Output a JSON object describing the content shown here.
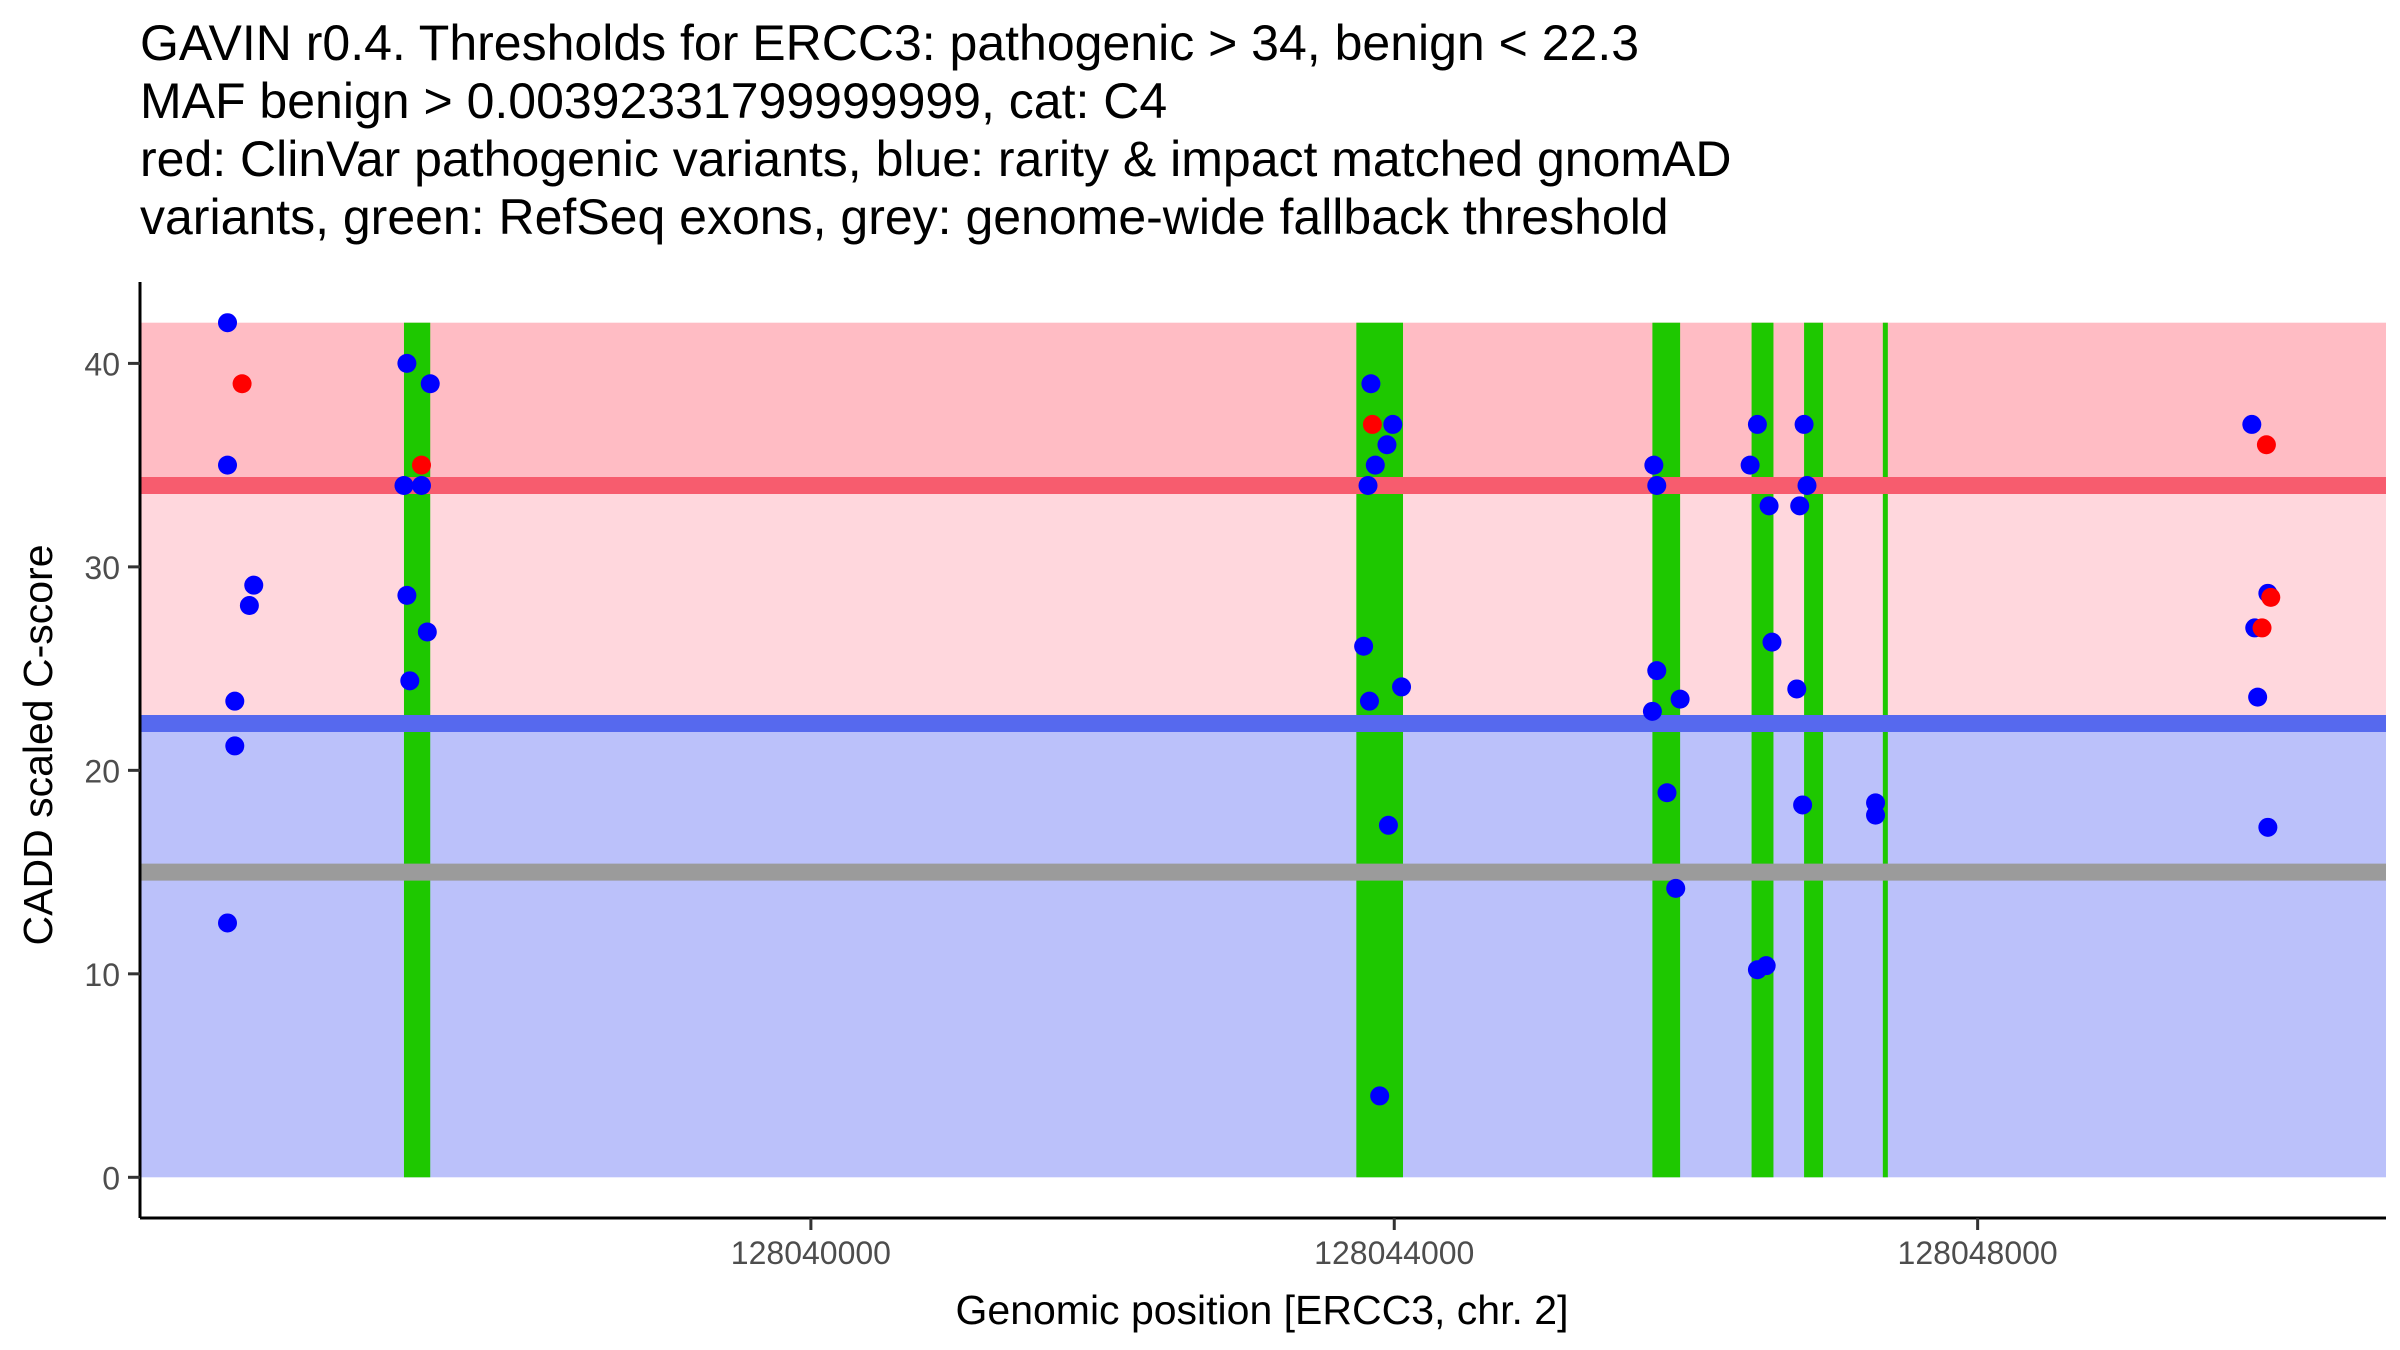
{
  "chart_data": {
    "type": "scatter",
    "title_lines": [
      "GAVIN r0.4. Thresholds for ERCC3: pathogenic > 34, benign < 22.3",
      "MAF benign > 0.00392331799999999, cat: C4",
      "red: ClinVar pathogenic variants, blue: rarity & impact matched gnomAD",
      "variants, green: RefSeq exons, grey: genome-wide fallback threshold"
    ],
    "xlabel": "Genomic position [ERCC3, chr. 2]",
    "ylabel": "CADD scaled C-score",
    "xlim": [
      128035400,
      128050800
    ],
    "ylim": [
      -2,
      44
    ],
    "x_ticks": [
      {
        "value": 128040000,
        "label": "128040000"
      },
      {
        "value": 128044000,
        "label": "128044000"
      },
      {
        "value": 128048000,
        "label": "128048000"
      }
    ],
    "y_ticks": [
      {
        "value": 0,
        "label": "0"
      },
      {
        "value": 10,
        "label": "10"
      },
      {
        "value": 20,
        "label": "20"
      },
      {
        "value": 30,
        "label": "30"
      },
      {
        "value": 40,
        "label": "40"
      }
    ],
    "thresholds": {
      "pathogenic": 34,
      "benign": 22.3,
      "fallback": 15.0,
      "region_top": 42,
      "region_bottom": 0
    },
    "colors": {
      "pathogenic_region": "#ffd7dd",
      "pathogenic_top_region": "#ffbcc4",
      "pathogenic_line": "#f75c6e",
      "benign_region": "#bbc1fa",
      "benign_line": "#5669ee",
      "fallback_line": "#9b9b9b",
      "exon": "#1ec800",
      "clinvar": "#ff0000",
      "gnomad": "#0000ff"
    },
    "exons": [
      [
        128037210,
        128037390
      ],
      [
        128043740,
        128044060
      ],
      [
        128045770,
        128045960
      ],
      [
        128046450,
        128046600
      ],
      [
        128046810,
        128046940
      ],
      [
        128047350,
        128047380
      ]
    ],
    "series": [
      {
        "name": "ClinVar pathogenic variants",
        "color": "#ff0000",
        "points": [
          [
            128036100,
            39
          ],
          [
            128037330,
            35
          ],
          [
            128043850,
            37
          ],
          [
            128049980,
            36
          ],
          [
            128049950,
            27
          ],
          [
            128050010,
            28.5
          ]
        ]
      },
      {
        "name": "rarity & impact matched gnomAD variants",
        "color": "#0000ff",
        "points": [
          [
            128036000,
            42
          ],
          [
            128036000,
            35
          ],
          [
            128036050,
            23.4
          ],
          [
            128036050,
            21.2
          ],
          [
            128036150,
            28.1
          ],
          [
            128036180,
            29.1
          ],
          [
            128036000,
            12.5
          ],
          [
            128037230,
            40
          ],
          [
            128037210,
            34
          ],
          [
            128037330,
            34
          ],
          [
            128037230,
            28.6
          ],
          [
            128037250,
            24.4
          ],
          [
            128037370,
            26.8
          ],
          [
            128037390,
            39
          ],
          [
            128043840,
            39
          ],
          [
            128043870,
            35
          ],
          [
            128043820,
            34
          ],
          [
            128043950,
            36
          ],
          [
            128043990,
            37
          ],
          [
            128043790,
            26.1
          ],
          [
            128043830,
            23.4
          ],
          [
            128044050,
            24.1
          ],
          [
            128043960,
            17.3
          ],
          [
            128043900,
            4
          ],
          [
            128045780,
            35
          ],
          [
            128045800,
            34
          ],
          [
            128045800,
            24.9
          ],
          [
            128045770,
            22.9
          ],
          [
            128045870,
            18.9
          ],
          [
            128045960,
            23.5
          ],
          [
            128045930,
            14.2
          ],
          [
            128046440,
            35
          ],
          [
            128046490,
            37
          ],
          [
            128046570,
            33
          ],
          [
            128046590,
            26.3
          ],
          [
            128046490,
            10.2
          ],
          [
            128046550,
            10.4
          ],
          [
            128046780,
            33
          ],
          [
            128046830,
            34
          ],
          [
            128046760,
            24
          ],
          [
            128046800,
            18.3
          ],
          [
            128046810,
            37
          ],
          [
            128047300,
            18.4
          ],
          [
            128047300,
            17.8
          ],
          [
            128049880,
            37
          ],
          [
            128049900,
            27
          ],
          [
            128049920,
            23.6
          ],
          [
            128049990,
            28.7
          ],
          [
            128049990,
            17.2
          ]
        ]
      }
    ]
  }
}
